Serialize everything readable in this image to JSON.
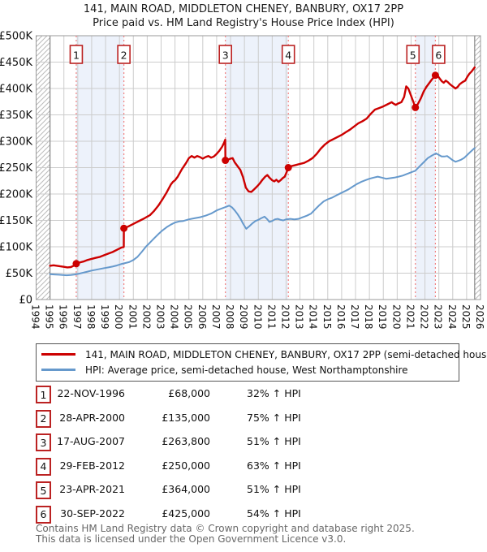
{
  "title": {
    "line1": "141, MAIN ROAD, MIDDLETON CHENEY, BANBURY, OX17 2PP",
    "line2": "Price paid vs. HM Land Registry's House Price Index (HPI)"
  },
  "chart_data": {
    "type": "line",
    "x_range": [
      1994,
      2026
    ],
    "ylim_k": [
      0,
      500
    ],
    "y_ticks": [
      {
        "value_k": 0,
        "label": "£0"
      },
      {
        "value_k": 50,
        "label": "£50K"
      },
      {
        "value_k": 100,
        "label": "£100K"
      },
      {
        "value_k": 150,
        "label": "£150K"
      },
      {
        "value_k": 200,
        "label": "£200K"
      },
      {
        "value_k": 250,
        "label": "£250K"
      },
      {
        "value_k": 300,
        "label": "£300K"
      },
      {
        "value_k": 350,
        "label": "£350K"
      },
      {
        "value_k": 400,
        "label": "£400K"
      },
      {
        "value_k": 450,
        "label": "£450K"
      },
      {
        "value_k": 500,
        "label": "£500K"
      }
    ],
    "x_tick_years": [
      1994,
      1995,
      1996,
      1997,
      1998,
      1999,
      2000,
      2001,
      2002,
      2003,
      2004,
      2005,
      2006,
      2007,
      2008,
      2009,
      2010,
      2011,
      2012,
      2013,
      2014,
      2015,
      2016,
      2017,
      2018,
      2019,
      2020,
      2021,
      2022,
      2023,
      2024,
      2025,
      2026
    ],
    "grid": true,
    "legend_position": "below",
    "hatch_regions": [
      [
        1994,
        1995
      ],
      [
        2025.58,
        2026
      ]
    ],
    "ownership_bands": [
      [
        1996.89,
        2000.32
      ],
      [
        2007.63,
        2012.16
      ],
      [
        2021.31,
        2022.75
      ]
    ],
    "sales": [
      {
        "n": "1",
        "year": 1996.89,
        "value_k": 68,
        "box_dx": 0
      },
      {
        "n": "2",
        "year": 2000.32,
        "value_k": 135,
        "box_dx": 0
      },
      {
        "n": "3",
        "year": 2007.63,
        "value_k": 263.8,
        "box_dx": 0
      },
      {
        "n": "4",
        "year": 2012.16,
        "value_k": 250,
        "box_dx": 0
      },
      {
        "n": "5",
        "year": 2021.31,
        "value_k": 364,
        "box_dx": -3
      },
      {
        "n": "6",
        "year": 2022.75,
        "value_k": 425,
        "box_dx": 4
      }
    ],
    "series": [
      {
        "name": "141, MAIN ROAD, MIDDLETON CHENEY, BANBURY, OX17 2PP (semi-detached house)",
        "color": "#cc0000",
        "width": 2.4,
        "points": [
          [
            1995.0,
            64
          ],
          [
            1995.25,
            65
          ],
          [
            1995.5,
            64
          ],
          [
            1995.75,
            63
          ],
          [
            1996.0,
            62
          ],
          [
            1996.25,
            61
          ],
          [
            1996.5,
            61.5
          ],
          [
            1996.7,
            64
          ],
          [
            1996.89,
            68
          ],
          [
            1997.1,
            70
          ],
          [
            1997.4,
            72
          ],
          [
            1997.7,
            75
          ],
          [
            1998.0,
            77
          ],
          [
            1998.3,
            79
          ],
          [
            1998.6,
            81
          ],
          [
            1998.9,
            84
          ],
          [
            1999.2,
            87
          ],
          [
            1999.5,
            90
          ],
          [
            1999.8,
            94
          ],
          [
            2000.1,
            98
          ],
          [
            2000.31,
            100
          ],
          [
            2000.32,
            135
          ],
          [
            2000.6,
            138
          ],
          [
            2000.9,
            142
          ],
          [
            2001.2,
            146
          ],
          [
            2001.5,
            150
          ],
          [
            2001.8,
            154
          ],
          [
            2002.0,
            157
          ],
          [
            2002.2,
            160
          ],
          [
            2002.5,
            168
          ],
          [
            2002.8,
            178
          ],
          [
            2003.1,
            190
          ],
          [
            2003.4,
            203
          ],
          [
            2003.7,
            218
          ],
          [
            2003.85,
            223
          ],
          [
            2004.0,
            226
          ],
          [
            2004.2,
            233
          ],
          [
            2004.5,
            247
          ],
          [
            2004.8,
            259
          ],
          [
            2005.0,
            268
          ],
          [
            2005.2,
            272
          ],
          [
            2005.4,
            269
          ],
          [
            2005.6,
            272
          ],
          [
            2005.8,
            270
          ],
          [
            2006.0,
            267
          ],
          [
            2006.2,
            270
          ],
          [
            2006.4,
            272
          ],
          [
            2006.6,
            269
          ],
          [
            2006.8,
            271
          ],
          [
            2007.0,
            276
          ],
          [
            2007.2,
            282
          ],
          [
            2007.4,
            290
          ],
          [
            2007.55,
            298
          ],
          [
            2007.62,
            303
          ],
          [
            2007.63,
            264
          ],
          [
            2007.8,
            265
          ],
          [
            2008.0,
            267
          ],
          [
            2008.15,
            268
          ],
          [
            2008.3,
            260
          ],
          [
            2008.5,
            253
          ],
          [
            2008.7,
            246
          ],
          [
            2008.9,
            232
          ],
          [
            2009.1,
            212
          ],
          [
            2009.3,
            205
          ],
          [
            2009.5,
            204
          ],
          [
            2009.7,
            209
          ],
          [
            2009.9,
            214
          ],
          [
            2010.1,
            220
          ],
          [
            2010.3,
            227
          ],
          [
            2010.5,
            233
          ],
          [
            2010.65,
            236
          ],
          [
            2010.8,
            231
          ],
          [
            2011.0,
            226
          ],
          [
            2011.15,
            224
          ],
          [
            2011.3,
            227
          ],
          [
            2011.45,
            223
          ],
          [
            2011.6,
            226
          ],
          [
            2011.75,
            230
          ],
          [
            2011.9,
            233
          ],
          [
            2012.05,
            242
          ],
          [
            2012.16,
            250
          ],
          [
            2012.4,
            253
          ],
          [
            2012.7,
            255
          ],
          [
            2013.0,
            257
          ],
          [
            2013.3,
            259
          ],
          [
            2013.6,
            263
          ],
          [
            2013.9,
            268
          ],
          [
            2014.2,
            276
          ],
          [
            2014.5,
            286
          ],
          [
            2014.8,
            294
          ],
          [
            2015.1,
            300
          ],
          [
            2015.4,
            304
          ],
          [
            2015.7,
            308
          ],
          [
            2016.0,
            312
          ],
          [
            2016.3,
            317
          ],
          [
            2016.6,
            322
          ],
          [
            2016.9,
            328
          ],
          [
            2017.2,
            334
          ],
          [
            2017.5,
            338
          ],
          [
            2017.8,
            343
          ],
          [
            2018.1,
            352
          ],
          [
            2018.4,
            360
          ],
          [
            2018.7,
            363
          ],
          [
            2019.0,
            366
          ],
          [
            2019.3,
            370
          ],
          [
            2019.6,
            374
          ],
          [
            2019.75,
            371
          ],
          [
            2019.9,
            369
          ],
          [
            2020.1,
            372
          ],
          [
            2020.3,
            374
          ],
          [
            2020.5,
            384
          ],
          [
            2020.65,
            404
          ],
          [
            2020.8,
            400
          ],
          [
            2021.0,
            386
          ],
          [
            2021.31,
            364
          ],
          [
            2021.5,
            371
          ],
          [
            2021.7,
            381
          ],
          [
            2021.9,
            394
          ],
          [
            2022.1,
            403
          ],
          [
            2022.3,
            410
          ],
          [
            2022.5,
            417
          ],
          [
            2022.75,
            425
          ],
          [
            2022.85,
            427
          ],
          [
            2023.0,
            421
          ],
          [
            2023.2,
            414
          ],
          [
            2023.35,
            411
          ],
          [
            2023.5,
            415
          ],
          [
            2023.65,
            412
          ],
          [
            2023.8,
            408
          ],
          [
            2024.0,
            404
          ],
          [
            2024.2,
            400
          ],
          [
            2024.35,
            403
          ],
          [
            2024.5,
            408
          ],
          [
            2024.7,
            412
          ],
          [
            2024.9,
            415
          ],
          [
            2025.05,
            422
          ],
          [
            2025.2,
            428
          ],
          [
            2025.35,
            432
          ],
          [
            2025.5,
            437
          ],
          [
            2025.58,
            440
          ]
        ]
      },
      {
        "name": "HPI: Average price, semi-detached house, West Northamptonshire",
        "color": "#6699cc",
        "width": 2,
        "points": [
          [
            1995.0,
            48
          ],
          [
            1995.3,
            47.5
          ],
          [
            1995.6,
            47
          ],
          [
            1995.9,
            46.5
          ],
          [
            1996.2,
            46
          ],
          [
            1996.5,
            46.5
          ],
          [
            1996.8,
            47.5
          ],
          [
            1997.1,
            49
          ],
          [
            1997.4,
            51
          ],
          [
            1997.7,
            53
          ],
          [
            1998.0,
            55
          ],
          [
            1998.3,
            56.5
          ],
          [
            1998.6,
            58
          ],
          [
            1998.9,
            59.5
          ],
          [
            1999.2,
            61
          ],
          [
            1999.5,
            62.5
          ],
          [
            1999.8,
            64.5
          ],
          [
            2000.1,
            67
          ],
          [
            2000.4,
            69
          ],
          [
            2000.7,
            71
          ],
          [
            2001.0,
            75
          ],
          [
            2001.3,
            81
          ],
          [
            2001.6,
            90
          ],
          [
            2001.9,
            100
          ],
          [
            2002.2,
            108
          ],
          [
            2002.5,
            116
          ],
          [
            2002.8,
            124
          ],
          [
            2003.1,
            131
          ],
          [
            2003.4,
            137
          ],
          [
            2003.7,
            142
          ],
          [
            2004.0,
            146
          ],
          [
            2004.3,
            148
          ],
          [
            2004.6,
            149
          ],
          [
            2005.0,
            152
          ],
          [
            2005.4,
            154
          ],
          [
            2005.8,
            156
          ],
          [
            2006.2,
            159
          ],
          [
            2006.6,
            163
          ],
          [
            2007.0,
            169
          ],
          [
            2007.3,
            172
          ],
          [
            2007.6,
            175
          ],
          [
            2007.9,
            178
          ],
          [
            2008.1,
            175
          ],
          [
            2008.3,
            169
          ],
          [
            2008.5,
            162
          ],
          [
            2008.7,
            154
          ],
          [
            2008.9,
            144
          ],
          [
            2009.13,
            134
          ],
          [
            2009.35,
            139
          ],
          [
            2009.6,
            145
          ],
          [
            2009.8,
            149
          ],
          [
            2010.0,
            151
          ],
          [
            2010.2,
            154
          ],
          [
            2010.45,
            157
          ],
          [
            2010.65,
            152
          ],
          [
            2010.8,
            147
          ],
          [
            2011.0,
            149
          ],
          [
            2011.2,
            152
          ],
          [
            2011.4,
            153
          ],
          [
            2011.6,
            151
          ],
          [
            2011.8,
            150
          ],
          [
            2012.0,
            152
          ],
          [
            2012.3,
            153
          ],
          [
            2012.6,
            152
          ],
          [
            2012.9,
            153
          ],
          [
            2013.2,
            156
          ],
          [
            2013.5,
            159
          ],
          [
            2013.8,
            163
          ],
          [
            2014.1,
            171
          ],
          [
            2014.4,
            179
          ],
          [
            2014.7,
            186
          ],
          [
            2015.0,
            190
          ],
          [
            2015.3,
            193
          ],
          [
            2015.6,
            197
          ],
          [
            2015.9,
            201
          ],
          [
            2016.2,
            205
          ],
          [
            2016.5,
            209
          ],
          [
            2016.8,
            214
          ],
          [
            2017.1,
            219
          ],
          [
            2017.4,
            223
          ],
          [
            2017.7,
            226
          ],
          [
            2018.0,
            229
          ],
          [
            2018.3,
            231
          ],
          [
            2018.6,
            233
          ],
          [
            2018.9,
            231
          ],
          [
            2019.2,
            229
          ],
          [
            2019.5,
            230
          ],
          [
            2019.8,
            231
          ],
          [
            2020.1,
            233
          ],
          [
            2020.4,
            235
          ],
          [
            2020.7,
            238
          ],
          [
            2021.0,
            241
          ],
          [
            2021.3,
            244
          ],
          [
            2021.6,
            252
          ],
          [
            2021.9,
            260
          ],
          [
            2022.2,
            268
          ],
          [
            2022.5,
            273
          ],
          [
            2022.8,
            277
          ],
          [
            2023.0,
            274
          ],
          [
            2023.2,
            271
          ],
          [
            2023.4,
            271
          ],
          [
            2023.6,
            272
          ],
          [
            2023.8,
            268
          ],
          [
            2024.0,
            264
          ],
          [
            2024.2,
            261
          ],
          [
            2024.4,
            263
          ],
          [
            2024.6,
            265
          ],
          [
            2024.8,
            268
          ],
          [
            2025.0,
            273
          ],
          [
            2025.2,
            278
          ],
          [
            2025.4,
            283
          ],
          [
            2025.58,
            287
          ]
        ]
      }
    ],
    "colors": {
      "price_line": "#cc0000",
      "hpi_line": "#6699cc",
      "sale_dashed": "#f08080",
      "band_fill": "#edf2fb",
      "grid": "#cccccc",
      "plot_border": "#999999",
      "hatch": "#bbbbbb",
      "badge_border": "#bb2222"
    }
  },
  "legend": {
    "items": [
      {
        "swatch_color": "#cc0000",
        "label": "141, MAIN ROAD, MIDDLETON CHENEY, BANBURY, OX17 2PP (semi-detached house)"
      },
      {
        "swatch_color": "#6699cc",
        "label": "HPI: Average price, semi-detached house, West Northamptonshire"
      }
    ]
  },
  "table": {
    "rows": [
      {
        "num": "1",
        "date": "22-NOV-1996",
        "price": "£68,000",
        "vs_hpi": "32% ↑ HPI"
      },
      {
        "num": "2",
        "date": "28-APR-2000",
        "price": "£135,000",
        "vs_hpi": "75% ↑ HPI"
      },
      {
        "num": "3",
        "date": "17-AUG-2007",
        "price": "£263,800",
        "vs_hpi": "51% ↑ HPI"
      },
      {
        "num": "4",
        "date": "29-FEB-2012",
        "price": "£250,000",
        "vs_hpi": "63% ↑ HPI"
      },
      {
        "num": "5",
        "date": "23-APR-2021",
        "price": "£364,000",
        "vs_hpi": "51% ↑ HPI"
      },
      {
        "num": "6",
        "date": "30-SEP-2022",
        "price": "£425,000",
        "vs_hpi": "54% ↑ HPI"
      }
    ]
  },
  "footer": {
    "line1": "Contains HM Land Registry data © Crown copyright and database right 2025.",
    "line2": "This data is licensed under the Open Government Licence v3.0."
  }
}
